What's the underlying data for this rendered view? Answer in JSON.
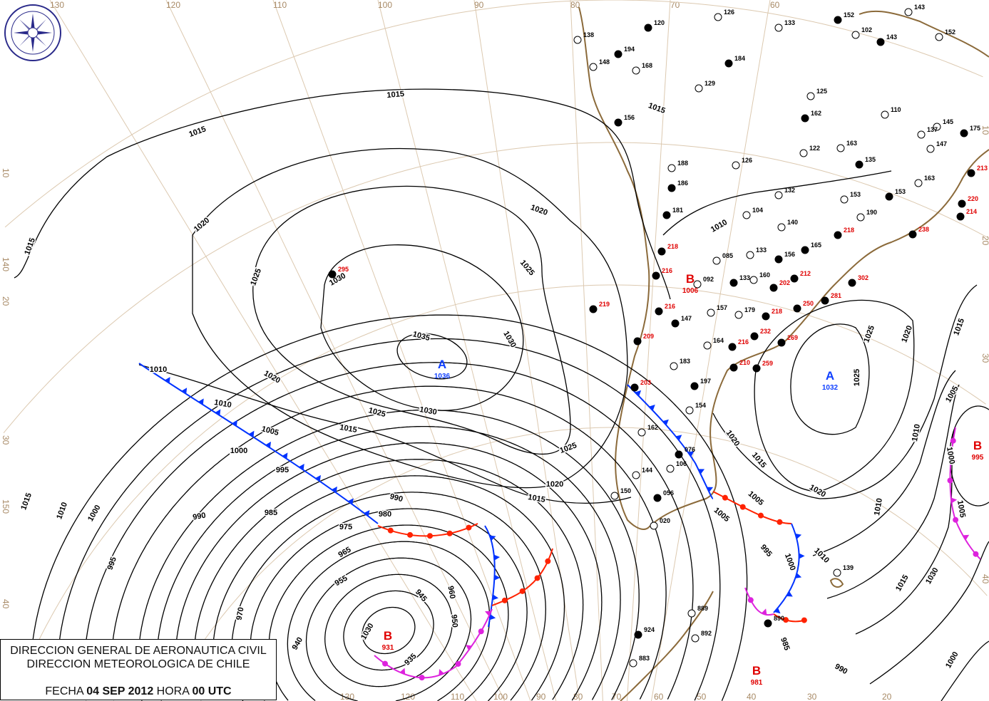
{
  "header": {
    "line1": "DIRECCION GENERAL DE AERONAUTICA CIVIL",
    "line2": "DIRECCION METEOROLOGICA DE CHILE",
    "date_label": "FECHA",
    "date_value": "04 SEP 2012",
    "hour_label": "HORA",
    "hour_value": "00 UTC"
  },
  "logo": {
    "text_top": "DIRECCION METEOROLOGICA",
    "text_bottom": "CHILE"
  },
  "colors": {
    "isobar": "#000000",
    "coast": "#8b6a3a",
    "grid": "#dcc9b0",
    "high": "#1040ff",
    "low": "#e00000",
    "cold_front": "#0033ff",
    "warm_front": "#ff2200",
    "occluded_front": "#dd22dd"
  },
  "grid_labels": {
    "top": [
      "130",
      "120",
      "110",
      "100",
      "90",
      "80",
      "70",
      "60"
    ],
    "left": [
      "10",
      "20",
      "30",
      "40",
      "140",
      "150"
    ],
    "right": [
      "10",
      "20",
      "30",
      "40"
    ],
    "bottom": [
      "130",
      "120",
      "110",
      "100",
      "90",
      "80",
      "70",
      "60",
      "50",
      "40",
      "30",
      "20"
    ]
  },
  "pressure_centers": [
    {
      "type": "A",
      "value": "1036"
    },
    {
      "type": "A",
      "value": "1032"
    },
    {
      "type": "B",
      "value": "931"
    },
    {
      "type": "B",
      "value": "995"
    },
    {
      "type": "B",
      "value": "981"
    },
    {
      "type": "B",
      "value": "1006"
    }
  ],
  "low_isobars": [
    "935",
    "940",
    "945",
    "950",
    "955",
    "960",
    "965",
    "970",
    "975",
    "980",
    "985",
    "990",
    "995",
    "1000",
    "1005",
    "1010",
    "1015"
  ],
  "isobar_labels": [
    "1035",
    "1030",
    "1030",
    "1030",
    "1025",
    "1025",
    "1025",
    "1025",
    "1020",
    "1020",
    "1020",
    "1020",
    "1020",
    "1015",
    "1015",
    "1015",
    "1015",
    "1015",
    "1015",
    "1015",
    "1010",
    "1010",
    "1010",
    "1005",
    "1005",
    "1000",
    "1000",
    "995",
    "995",
    "990",
    "990",
    "985",
    "980",
    "975",
    "970",
    "965",
    "960",
    "955",
    "950",
    "945",
    "940",
    "935",
    "1030",
    "1025",
    "1020",
    "1015",
    "1010",
    "1005",
    "1000",
    "1030",
    "1025",
    "1020",
    "1015",
    "1010",
    "1005",
    "1000",
    "995",
    "990",
    "985",
    "1000",
    "1010",
    "1015",
    "1005",
    "1010"
  ],
  "stations": {
    "black": [
      "120",
      "126",
      "133",
      "152",
      "143",
      "102",
      "143",
      "152",
      "138",
      "194",
      "148",
      "168",
      "184",
      "129",
      "125",
      "162",
      "110",
      "145",
      "175",
      "137",
      "147",
      "156",
      "163",
      "122",
      "135",
      "126",
      "188",
      "186",
      "132",
      "153",
      "153",
      "163",
      "190",
      "181",
      "104",
      "140",
      "165",
      "133",
      "085",
      "156",
      "160",
      "092",
      "133",
      "157",
      "179",
      "147",
      "164",
      "183",
      "197",
      "154",
      "162",
      "076",
      "144",
      "150",
      "056",
      "020",
      "889",
      "924",
      "892",
      "883",
      "890",
      "139",
      "106"
    ],
    "red": [
      "295",
      "219",
      "218",
      "216",
      "216",
      "213",
      "220",
      "218",
      "238",
      "214",
      "212",
      "302",
      "281",
      "250",
      "218",
      "232",
      "269",
      "216",
      "210",
      "259",
      "209",
      "203",
      "202"
    ]
  }
}
